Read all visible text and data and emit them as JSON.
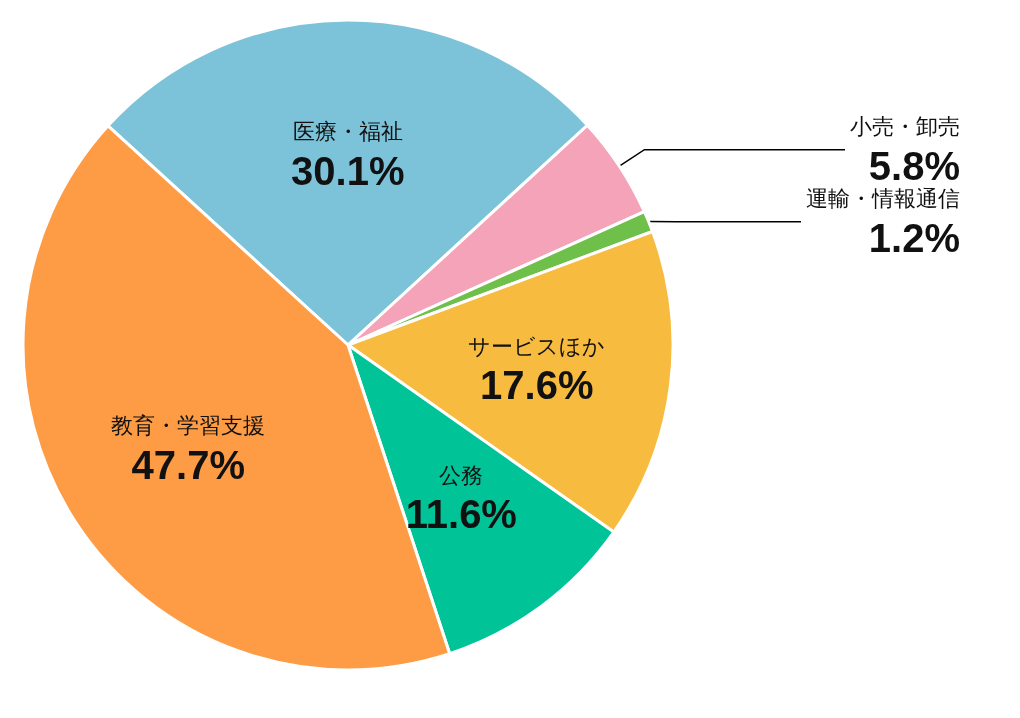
{
  "chart_data": {
    "type": "pie",
    "categories": [
      "医療・福祉",
      "小売・卸売",
      "運輸・情報通信",
      "サービスほか",
      "公務",
      "教育・学習支援"
    ],
    "values": [
      30.1,
      5.8,
      1.2,
      17.6,
      11.6,
      47.7
    ],
    "value_labels": [
      "30.1%",
      "5.8%",
      "1.2%",
      "17.6%",
      "11.6%",
      "47.7%"
    ],
    "colors": [
      "#7cc3d9",
      "#f5a3b9",
      "#6fbf4b",
      "#f7bc3f",
      "#00c497",
      "#fd9c45"
    ],
    "legend": false
  }
}
